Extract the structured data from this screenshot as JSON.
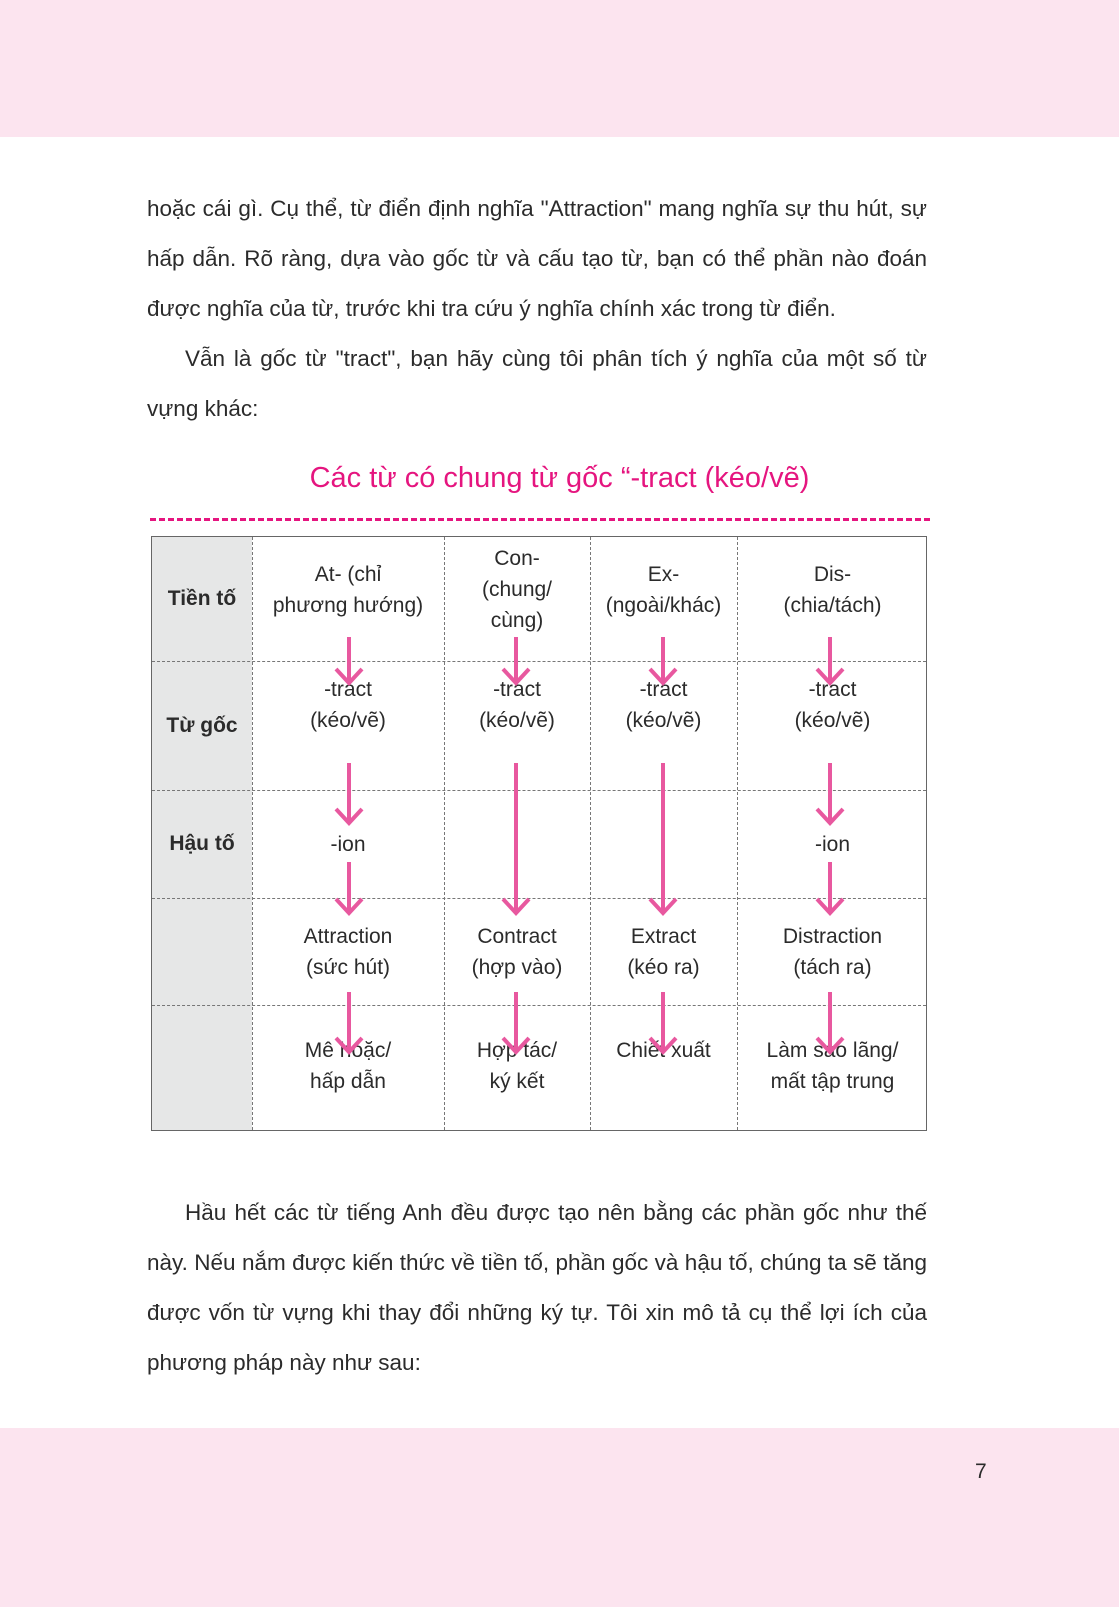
{
  "paragraphs": [
    "hoặc cái gì. Cụ thể, từ điển định nghĩa \"Attraction\" mang nghĩa sự thu hút, sự hấp dẫn. Rõ ràng, dựa vào gốc từ và cấu tạo từ, bạn có thể phần nào đoán được nghĩa của từ, trước khi tra cứu ý nghĩa chính xác trong từ điển.",
    "Vẫn là gốc từ \"tract\", bạn hãy cùng tôi phân tích ý nghĩa của một số từ vựng khác:",
    "Hầu hết các từ tiếng Anh đều được tạo nên bằng các phần gốc như thế này. Nếu nắm được kiến thức về tiền tố, phần gốc và hậu tố, chúng ta sẽ tăng được vốn từ vựng khi thay đổi những ký tự. Tôi xin mô tả cụ thể lợi ích của phương pháp này như sau:"
  ],
  "diagram": {
    "title": "Các từ có chung từ gốc “-tract (kéo/vẽ)",
    "row_labels": [
      "Tiền tố",
      "Từ gốc",
      "Hậu tố",
      "",
      ""
    ],
    "columns": [
      {
        "prefix": "At- (chỉ\nphương hướng)",
        "root": "-tract\n(kéo/vẽ)",
        "suffix": "-ion",
        "word": "Attraction\n(sức hút)",
        "meaning": "Mê hoặc/\nhấp dẫn"
      },
      {
        "prefix": "Con-\n(chung/\ncùng)",
        "root": "-tract\n(kéo/vẽ)",
        "suffix": "",
        "word": "Contract\n(hợp vào)",
        "meaning": "Hợp tác/\nký kết"
      },
      {
        "prefix": "Ex-\n(ngoài/khác)",
        "root": "-tract\n(kéo/vẽ)",
        "suffix": "",
        "word": "Extract\n(kéo ra)",
        "meaning": "Chiết xuất"
      },
      {
        "prefix": "Dis-\n(chia/tách)",
        "root": "-tract\n(kéo/vẽ)",
        "suffix": "-ion",
        "word": "Distraction\n(tách ra)",
        "meaning": "Làm sao lãng/\nmất tập trung"
      }
    ],
    "accent_color": "#e5157f",
    "arrow_color": "#e8589f"
  },
  "page_number": "7",
  "band_color": "#fce4ef"
}
